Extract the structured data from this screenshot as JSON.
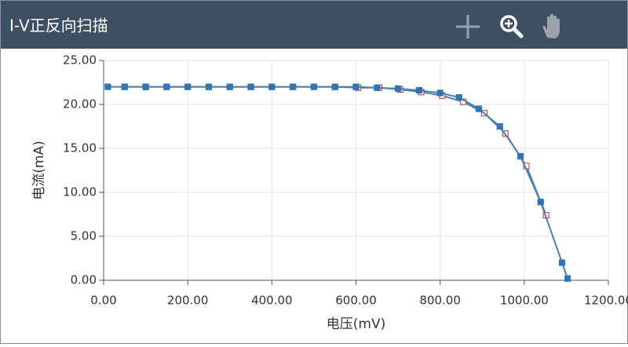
{
  "chart_data": {
    "type": "line",
    "title": "I-V正反向扫描",
    "x_label": "电压(mV)",
    "y_label": "电流(mA)",
    "xlim": [
      0,
      1200
    ],
    "ylim": [
      0,
      25
    ],
    "grid": true,
    "xticks": [
      {
        "value": 0,
        "label": "0.00"
      },
      {
        "value": 200,
        "label": "200.00"
      },
      {
        "value": 400,
        "label": "400.00"
      },
      {
        "value": 600,
        "label": "600.00"
      },
      {
        "value": 800,
        "label": "800.00"
      },
      {
        "value": 1000,
        "label": "1000.00"
      },
      {
        "value": 1200,
        "label": "1200.00"
      }
    ],
    "yticks": [
      {
        "value": 0,
        "label": "0.00"
      },
      {
        "value": 5,
        "label": "5.00"
      },
      {
        "value": 10,
        "label": "10.00"
      },
      {
        "value": 15,
        "label": "15.00"
      },
      {
        "value": 20,
        "label": "20.00"
      },
      {
        "value": 25,
        "label": "25.00"
      }
    ],
    "series": [
      {
        "color": "#2e75b6",
        "marker": "filled",
        "x": [
          10,
          50,
          100,
          150,
          200,
          250,
          300,
          350,
          400,
          450,
          500,
          550,
          600,
          650,
          700,
          750,
          800,
          845,
          892,
          942,
          991,
          1039,
          1090,
          1103
        ],
        "values": [
          22,
          22,
          22,
          22,
          22,
          22,
          22,
          22,
          22,
          22,
          22,
          22,
          22,
          21.9,
          21.8,
          21.6,
          21.3,
          20.8,
          19.5,
          17.5,
          14.1,
          8.9,
          2.0,
          0.2
        ]
      },
      {
        "color": "#c0504d",
        "marker": "hollow",
        "x": [
          50,
          100,
          150,
          200,
          250,
          300,
          350,
          400,
          450,
          500,
          550,
          605,
          655,
          705,
          755,
          805,
          855,
          905,
          955,
          1005,
          1052
        ],
        "values": [
          22,
          22,
          22,
          22,
          22,
          22,
          22,
          22,
          22,
          22,
          22,
          21.9,
          21.9,
          21.7,
          21.4,
          21.0,
          20.3,
          19.0,
          16.7,
          13.0,
          7.4
        ]
      }
    ]
  }
}
